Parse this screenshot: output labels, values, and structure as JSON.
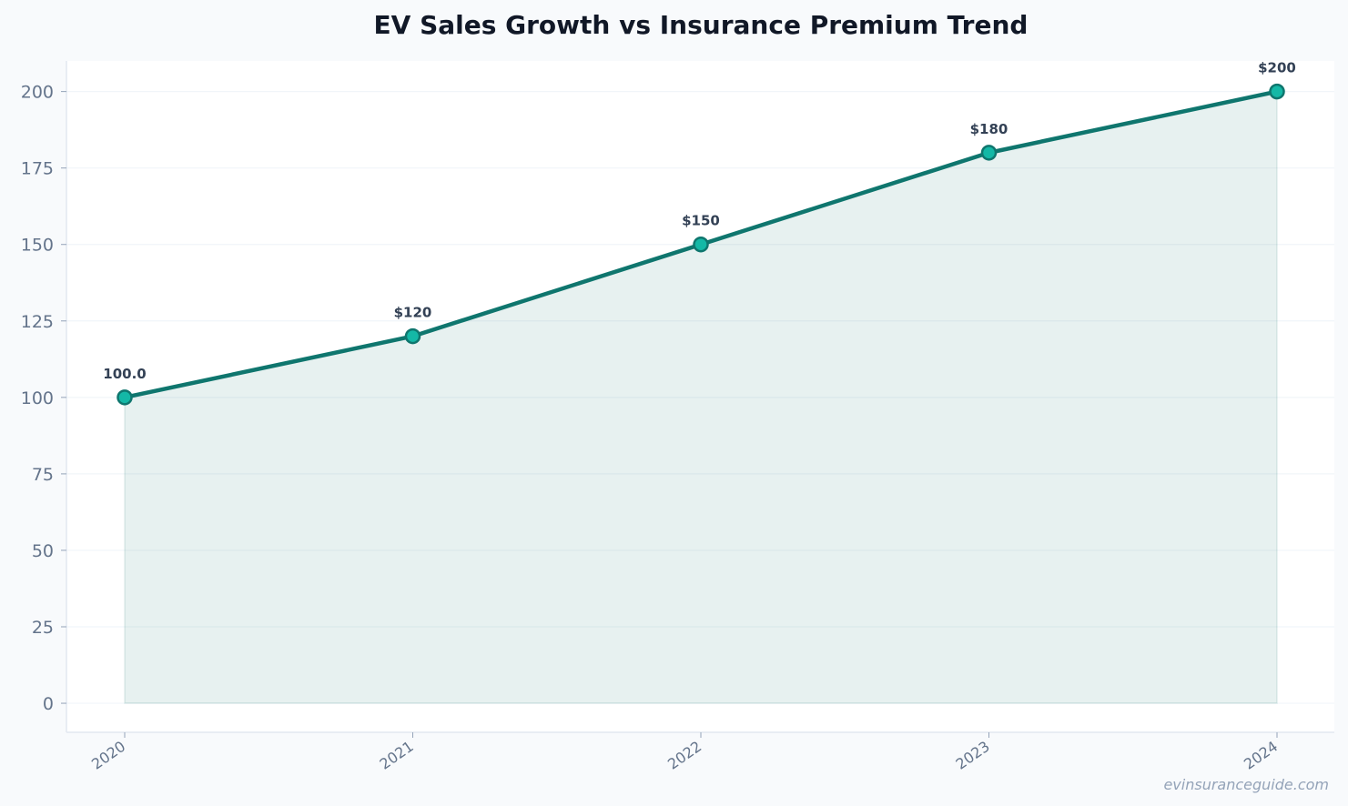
{
  "chart_data": {
    "type": "area",
    "title": "EV Sales Growth vs Insurance Premium Trend",
    "xlabel": "",
    "ylabel": "",
    "categories": [
      "2020",
      "2021",
      "2022",
      "2023",
      "2024"
    ],
    "values": [
      100,
      120,
      150,
      180,
      200
    ],
    "data_labels": [
      "100.0",
      "$120",
      "$150",
      "$180",
      "$200"
    ],
    "ylim": [
      -9.5,
      210
    ],
    "yticks": [
      0,
      25,
      50,
      75,
      100,
      125,
      150,
      175,
      200
    ],
    "grid": true,
    "legend": "none",
    "line_color": "#0f766e",
    "marker_fill": "#14b8a6",
    "fill_color": "#0f766e",
    "fill_opacity": 0.1
  },
  "watermark": "evinsuranceguide.com"
}
